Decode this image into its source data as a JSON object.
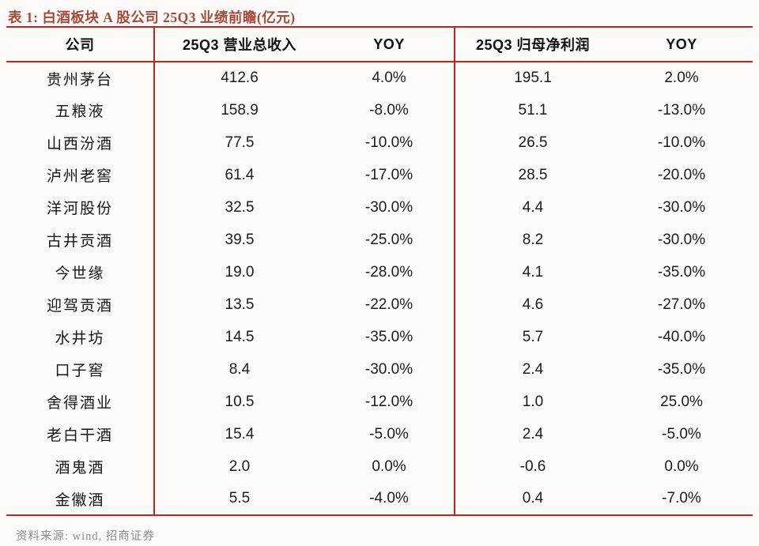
{
  "title": "表 1: 白酒板块 A 股公司 25Q3 业绩前瞻(亿元)",
  "colors": {
    "title_red": "#a6493a",
    "rule_red": "#c9211e",
    "body_text": "#1b1b1b",
    "source_gray": "#8c8c8c",
    "background": "#fcfbf9"
  },
  "table": {
    "headers": {
      "company": "公司",
      "revenue": "25Q3 营业总收入",
      "revenue_yoy": "YOY",
      "profit": "25Q3 归母净利润",
      "profit_yoy": "YOY"
    },
    "rows": [
      {
        "company": "贵州茅台",
        "revenue": "412.6",
        "revenue_yoy": "4.0%",
        "profit": "195.1",
        "profit_yoy": "2.0%"
      },
      {
        "company": "五粮液",
        "revenue": "158.9",
        "revenue_yoy": "-8.0%",
        "profit": "51.1",
        "profit_yoy": "-13.0%"
      },
      {
        "company": "山西汾酒",
        "revenue": "77.5",
        "revenue_yoy": "-10.0%",
        "profit": "26.5",
        "profit_yoy": "-10.0%"
      },
      {
        "company": "泸州老窖",
        "revenue": "61.4",
        "revenue_yoy": "-17.0%",
        "profit": "28.5",
        "profit_yoy": "-20.0%"
      },
      {
        "company": "洋河股份",
        "revenue": "32.5",
        "revenue_yoy": "-30.0%",
        "profit": "4.4",
        "profit_yoy": "-30.0%"
      },
      {
        "company": "古井贡酒",
        "revenue": "39.5",
        "revenue_yoy": "-25.0%",
        "profit": "8.2",
        "profit_yoy": "-30.0%"
      },
      {
        "company": "今世缘",
        "revenue": "19.0",
        "revenue_yoy": "-28.0%",
        "profit": "4.1",
        "profit_yoy": "-35.0%"
      },
      {
        "company": "迎驾贡酒",
        "revenue": "13.5",
        "revenue_yoy": "-22.0%",
        "profit": "4.6",
        "profit_yoy": "-27.0%"
      },
      {
        "company": "水井坊",
        "revenue": "14.5",
        "revenue_yoy": "-35.0%",
        "profit": "5.7",
        "profit_yoy": "-40.0%"
      },
      {
        "company": "口子窖",
        "revenue": "8.4",
        "revenue_yoy": "-30.0%",
        "profit": "2.4",
        "profit_yoy": "-35.0%"
      },
      {
        "company": "舍得酒业",
        "revenue": "10.5",
        "revenue_yoy": "-12.0%",
        "profit": "1.0",
        "profit_yoy": "25.0%"
      },
      {
        "company": "老白干酒",
        "revenue": "15.4",
        "revenue_yoy": "-5.0%",
        "profit": "2.4",
        "profit_yoy": "-5.0%"
      },
      {
        "company": "酒鬼酒",
        "revenue": "2.0",
        "revenue_yoy": "0.0%",
        "profit": "-0.6",
        "profit_yoy": "0.0%"
      },
      {
        "company": "金徽酒",
        "revenue": "5.5",
        "revenue_yoy": "-4.0%",
        "profit": "0.4",
        "profit_yoy": "-7.0%"
      }
    ]
  },
  "footer": {
    "source": "资料来源: wind, 招商证券"
  }
}
